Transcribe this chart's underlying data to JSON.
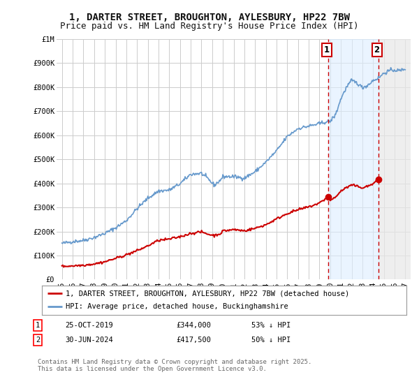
{
  "title": "1, DARTER STREET, BROUGHTON, AYLESBURY, HP22 7BW",
  "subtitle": "Price paid vs. HM Land Registry's House Price Index (HPI)",
  "ylim": [
    0,
    1000000
  ],
  "xlim_start": 1994.5,
  "xlim_end": 2027.5,
  "background_color": "#ffffff",
  "plot_bg_color": "#ffffff",
  "grid_color": "#cccccc",
  "hpi_color": "#6699cc",
  "price_color": "#cc0000",
  "vline_color": "#cc0000",
  "point1_x": 2019.82,
  "point1_y": 344000,
  "point2_x": 2024.5,
  "point2_y": 417500,
  "label1": "1",
  "label2": "2",
  "legend_price": "1, DARTER STREET, BROUGHTON, AYLESBURY, HP22 7BW (detached house)",
  "legend_hpi": "HPI: Average price, detached house, Buckinghamshire",
  "table_row1": [
    "1",
    "25-OCT-2019",
    "£344,000",
    "53% ↓ HPI"
  ],
  "table_row2": [
    "2",
    "30-JUN-2024",
    "£417,500",
    "50% ↓ HPI"
  ],
  "footer": "Contains HM Land Registry data © Crown copyright and database right 2025.\nThis data is licensed under the Open Government Licence v3.0.",
  "title_fontsize": 10,
  "subtitle_fontsize": 9,
  "tick_fontsize": 7.5,
  "legend_fontsize": 7.5,
  "footer_fontsize": 6.5
}
